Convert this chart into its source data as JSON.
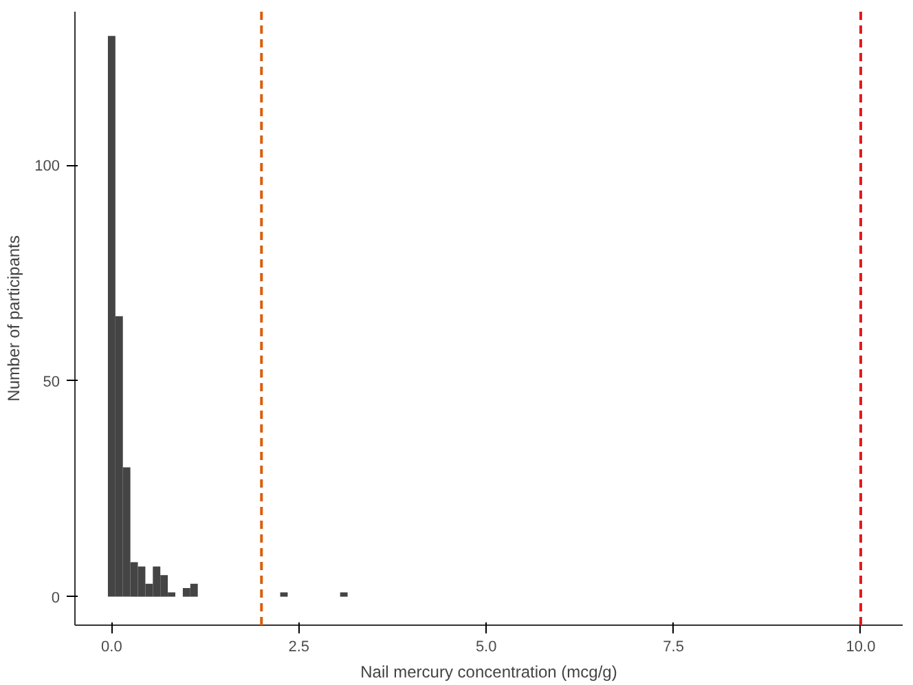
{
  "chart_data": {
    "type": "histogram",
    "xlabel": "Nail mercury concentration (mcg/g)",
    "ylabel": "Number of participants",
    "bins": [
      -0.05,
      0.05,
      0.15,
      0.25,
      0.35,
      0.45,
      0.55,
      0.65,
      0.75,
      0.85,
      0.95,
      1.05,
      1.15,
      1.25,
      1.35,
      1.45,
      1.55,
      1.65,
      1.75,
      1.85,
      1.95,
      2.05,
      2.15,
      2.25,
      2.35,
      2.45,
      2.55,
      2.65,
      2.75,
      2.85,
      2.95,
      3.05,
      3.15
    ],
    "values": [
      130,
      65,
      30,
      8,
      7,
      3,
      7,
      5,
      1,
      0,
      2,
      3,
      0,
      0,
      0,
      0,
      0,
      0,
      0,
      0,
      0,
      0,
      0,
      1,
      0,
      0,
      0,
      0,
      0,
      0,
      0,
      1
    ],
    "color": "#444444",
    "xlim": [
      -0.49,
      10.56
    ],
    "ylim": [
      -6.6,
      135.6
    ],
    "xticks": [
      {
        "value": 0,
        "label": "0.0"
      },
      2.5,
      {
        "value": 5,
        "label": "5.0"
      },
      7.5,
      {
        "value": 10,
        "label": "10.0"
      }
    ],
    "yticks": [
      0,
      50,
      100
    ],
    "ref_lines": [
      {
        "axis": "x",
        "value": 2,
        "color": "#d95f0e",
        "line_style": "dashed"
      },
      {
        "axis": "x",
        "value": 10,
        "color": "#e31a1c",
        "line_style": "dashed"
      }
    ],
    "grid": false
  }
}
